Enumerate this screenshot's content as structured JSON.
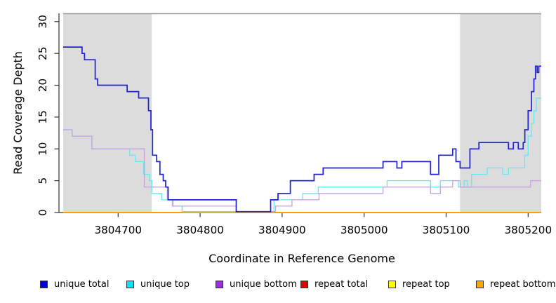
{
  "figure": {
    "xlabel": "Coordinate in Reference Genome",
    "ylabel": "Read Coverage Depth"
  },
  "chart_data": {
    "type": "step-line",
    "title": "",
    "xlabel": "Coordinate in Reference Genome",
    "ylabel": "Read Coverage Depth",
    "xlim": [
      3804633,
      3805216
    ],
    "ylim": [
      0,
      31.3
    ],
    "x_ticks": [
      3804700,
      3804800,
      3804900,
      3805000,
      3805100,
      3805200
    ],
    "y_ticks": [
      0,
      5,
      10,
      15,
      20,
      25,
      30
    ],
    "grid": false,
    "legend_position": "bottom",
    "axis_color": "#333333",
    "shade_color": "#DCDCDC",
    "top_line_color": "#9A9A9A",
    "shaded_regions": [
      [
        3804633,
        3804741
      ],
      [
        3805117,
        3805216
      ]
    ],
    "series": [
      {
        "name": "repeat total",
        "legend_color": "#DD0000",
        "line_color": "#DD0000",
        "width": 1.5,
        "raise_zero": false,
        "steps": [
          [
            3804633,
            0
          ],
          [
            3805216,
            0
          ]
        ]
      },
      {
        "name": "repeat top",
        "legend_color": "#FFFF00",
        "line_color": "#FFFF00",
        "width": 1.5,
        "raise_zero": false,
        "steps": [
          [
            3804633,
            0
          ],
          [
            3805216,
            0
          ]
        ]
      },
      {
        "name": "repeat bottom",
        "legend_color": "#FFA500",
        "line_color": "#FF9D00",
        "width": 1.8,
        "raise_zero": false,
        "steps": [
          [
            3804633,
            0
          ],
          [
            3805216,
            0
          ]
        ]
      },
      {
        "name": "unique top",
        "legend_color": "#00E5EE",
        "line_color": "#63E9F2",
        "width": 1.3,
        "raise_zero": true,
        "steps": [
          [
            3804633,
            13
          ],
          [
            3804644,
            12
          ],
          [
            3804668,
            10
          ],
          [
            3804714,
            9
          ],
          [
            3804721,
            8
          ],
          [
            3804731,
            6
          ],
          [
            3804738,
            5
          ],
          [
            3804741,
            3
          ],
          [
            3804753,
            2
          ],
          [
            3804766,
            1
          ],
          [
            3804778,
            0
          ],
          [
            3804890,
            2
          ],
          [
            3804925,
            3
          ],
          [
            3804944,
            4
          ],
          [
            3805028,
            5
          ],
          [
            3805081,
            4
          ],
          [
            3805093,
            5
          ],
          [
            3805115,
            4
          ],
          [
            3805122,
            5
          ],
          [
            3805126,
            4
          ],
          [
            3805131,
            6
          ],
          [
            3805150,
            7
          ],
          [
            3805169,
            6
          ],
          [
            3805176,
            7
          ],
          [
            3805196,
            9
          ],
          [
            3805200,
            12
          ],
          [
            3805204,
            14
          ],
          [
            3805207,
            16
          ],
          [
            3805210,
            18
          ],
          [
            3805216,
            18
          ]
        ]
      },
      {
        "name": "unique bottom",
        "legend_color": "#9B30D0",
        "line_color": "#C9A0E0",
        "width": 1.3,
        "raise_zero": true,
        "steps": [
          [
            3804633,
            13
          ],
          [
            3804644,
            12
          ],
          [
            3804668,
            10
          ],
          [
            3804732,
            4
          ],
          [
            3804760,
            2
          ],
          [
            3804767,
            1
          ],
          [
            3804844,
            0
          ],
          [
            3804892,
            1
          ],
          [
            3804912,
            2
          ],
          [
            3804945,
            3
          ],
          [
            3805023,
            4
          ],
          [
            3805081,
            3
          ],
          [
            3805093,
            4
          ],
          [
            3805108,
            5
          ],
          [
            3805117,
            4
          ],
          [
            3805203,
            5
          ],
          [
            3805216,
            5
          ]
        ]
      },
      {
        "name": "unique total",
        "legend_color": "#0000CC",
        "line_color": "#2020D6",
        "width": 1.7,
        "raise_zero": true,
        "steps": [
          [
            3804633,
            26
          ],
          [
            3804656,
            25
          ],
          [
            3804659,
            24
          ],
          [
            3804672,
            21
          ],
          [
            3804675,
            20
          ],
          [
            3804711,
            19
          ],
          [
            3804725,
            18
          ],
          [
            3804737,
            16
          ],
          [
            3804740,
            13
          ],
          [
            3804742,
            9
          ],
          [
            3804747,
            8
          ],
          [
            3804751,
            6
          ],
          [
            3804755,
            5
          ],
          [
            3804758,
            4
          ],
          [
            3804761,
            2
          ],
          [
            3804844,
            0
          ],
          [
            3804886,
            2
          ],
          [
            3804895,
            3
          ],
          [
            3804910,
            5
          ],
          [
            3804939,
            6
          ],
          [
            3804950,
            7
          ],
          [
            3805023,
            8
          ],
          [
            3805040,
            7
          ],
          [
            3805046,
            8
          ],
          [
            3805081,
            6
          ],
          [
            3805091,
            9
          ],
          [
            3805108,
            10
          ],
          [
            3805112,
            8
          ],
          [
            3805117,
            7
          ],
          [
            3805129,
            10
          ],
          [
            3805140,
            11
          ],
          [
            3805176,
            10
          ],
          [
            3805182,
            11
          ],
          [
            3805188,
            10
          ],
          [
            3805194,
            11
          ],
          [
            3805196,
            13
          ],
          [
            3805200,
            16
          ],
          [
            3805204,
            19
          ],
          [
            3805207,
            21
          ],
          [
            3805209,
            23
          ],
          [
            3805211,
            22
          ],
          [
            3805213,
            23
          ],
          [
            3805216,
            23
          ]
        ]
      }
    ],
    "legend_order": [
      "unique total",
      "unique top",
      "unique bottom",
      "repeat total",
      "repeat top",
      "repeat bottom"
    ]
  }
}
